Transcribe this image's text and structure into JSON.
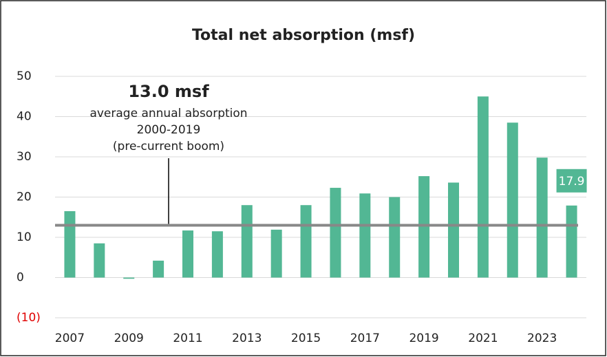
{
  "chart_data": {
    "type": "bar",
    "title": "Total net absorption (msf)",
    "categories": [
      "2007",
      null,
      "2009",
      null,
      "2011",
      null,
      "2013",
      null,
      "2015",
      null,
      "2017",
      null,
      "2019",
      null,
      "2021",
      null,
      "2023",
      null
    ],
    "values": [
      16.5,
      8.5,
      -0.3,
      4.2,
      11.7,
      11.5,
      18,
      11.9,
      18,
      22.3,
      20.9,
      20,
      25.2,
      23.6,
      45,
      38.5,
      29.8,
      17.9
    ],
    "value_labels": [
      null,
      null,
      null,
      null,
      null,
      null,
      null,
      null,
      null,
      null,
      null,
      null,
      null,
      null,
      null,
      null,
      null,
      "17.9"
    ],
    "color": "#52b794",
    "ylim": [
      -10,
      50
    ],
    "yticks": [
      {
        "value": -10,
        "label": "(10)",
        "color": "#e00000"
      },
      0,
      10,
      20,
      30,
      40,
      50
    ],
    "grid": true,
    "average_line": {
      "value": 13,
      "label": "13.0 msf",
      "color": "#888888",
      "lines": [
        "average annual absorption",
        "2000-2019",
        "(pre-current boom)"
      ]
    }
  }
}
